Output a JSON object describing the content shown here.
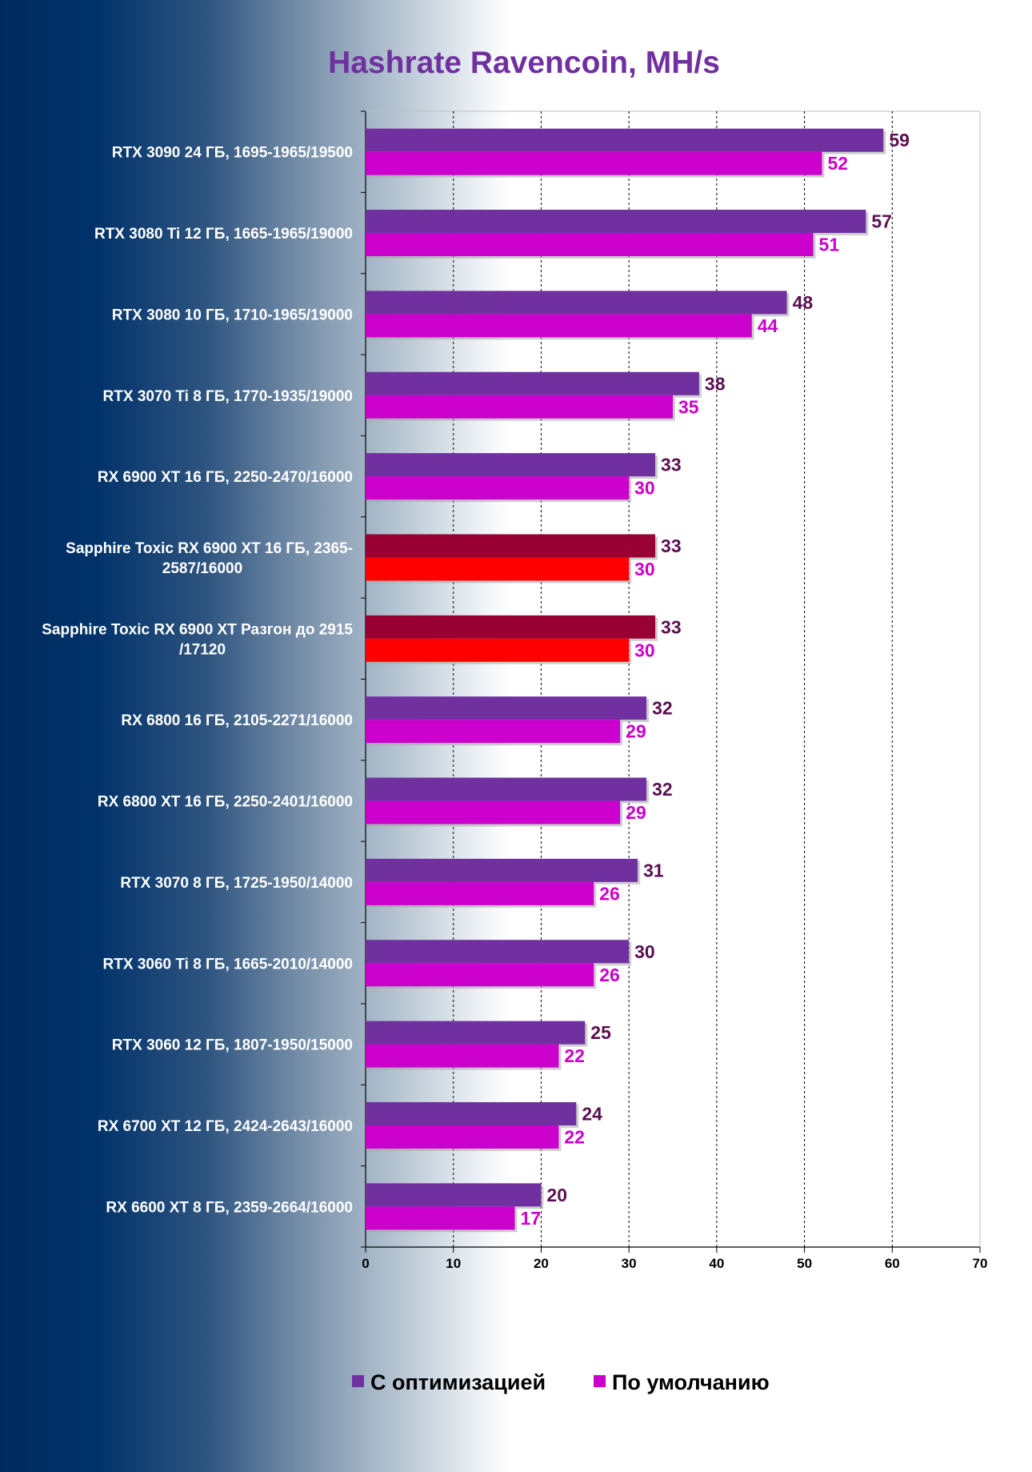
{
  "chart_data": {
    "type": "bar",
    "orientation": "horizontal",
    "title": "Hashrate Ravencoin, MH/s",
    "xlabel": "",
    "ylabel": "",
    "xlim": [
      0,
      70
    ],
    "ticks": [
      0,
      10,
      20,
      30,
      40,
      50,
      60,
      70
    ],
    "grid": "vertical dashed lines",
    "legend_position": "bottom",
    "categories": [
      "RTX 3090 24 ГБ, 1695-1965/19500",
      "RTX 3080 Ti 12 ГБ, 1665-1965/19000",
      "RTX 3080 10 ГБ, 1710-1965/19000",
      "RTX 3070 Ti 8 ГБ, 1770-1935/19000",
      "RX 6900 XT 16 ГБ, 2250-2470/16000",
      "Sapphire Toxic RX 6900 XT 16 ГБ, 2365-2587/16000",
      "Sapphire Toxic RX 6900 XT Разгон до 2915 /17120",
      "RX 6800 16 ГБ, 2105-2271/16000",
      "RX 6800 XT 16 ГБ, 2250-2401/16000",
      "RTX 3070 8 ГБ, 1725-1950/14000",
      "RTX 3060 Ti 8 ГБ, 1665-2010/14000",
      "RTX 3060 12 ГБ, 1807-1950/15000",
      "RX 6700 XT 12 ГБ, 2424-2643/16000",
      "RX 6600 XT 8 ГБ, 2359-2664/16000"
    ],
    "category_label_lines": [
      [
        "RTX 3090 24 ГБ, 1695-1965/19500"
      ],
      [
        "RTX 3080 Ti 12 ГБ, 1665-1965/19000"
      ],
      [
        "RTX 3080 10 ГБ, 1710-1965/19000"
      ],
      [
        "RTX 3070 Ti 8 ГБ, 1770-1935/19000"
      ],
      [
        "RX 6900 XT 16 ГБ, 2250-2470/16000"
      ],
      [
        "Sapphire Toxic RX 6900 XT 16 ГБ, 2365-",
        "2587/16000"
      ],
      [
        "Sapphire Toxic RX 6900 XT Разгон до 2915",
        "/17120"
      ],
      [
        "RX 6800 16 ГБ, 2105-2271/16000"
      ],
      [
        "RX 6800 XT 16 ГБ, 2250-2401/16000"
      ],
      [
        "RTX 3070 8 ГБ, 1725-1950/14000"
      ],
      [
        "RTX 3060 Ti 8 ГБ, 1665-2010/14000"
      ],
      [
        "RTX 3060 12 ГБ, 1807-1950/15000"
      ],
      [
        "RX 6700 XT 12 ГБ, 2424-2643/16000"
      ],
      [
        "RX 6600 XT 8 ГБ, 2359-2664/16000"
      ]
    ],
    "series": [
      {
        "name": "С оптимизацией",
        "color": "#7030a0",
        "label_color": "#5a0f50",
        "values": [
          59,
          57,
          48,
          38,
          33,
          33,
          33,
          32,
          32,
          31,
          30,
          25,
          24,
          20
        ]
      },
      {
        "name": "По умолчанию",
        "color": "#cc00cc",
        "label_color": "#cc00cc",
        "values": [
          52,
          51,
          44,
          35,
          30,
          30,
          30,
          29,
          29,
          26,
          26,
          22,
          22,
          17
        ]
      }
    ],
    "highlighted_categories": [
      5,
      6
    ],
    "highlight_colors": [
      "#990033",
      "#ff0000"
    ]
  }
}
